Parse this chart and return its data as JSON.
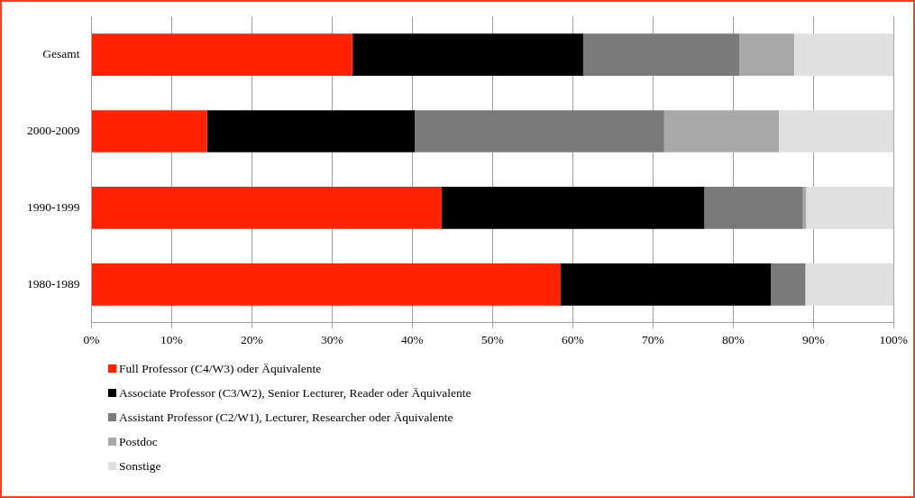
{
  "chart_data": {
    "type": "bar",
    "orientation": "horizontal",
    "stacked": true,
    "categories": [
      "Gesamt",
      "2000-2009",
      "1990-1999",
      "1980-1989"
    ],
    "series": [
      {
        "name": "Full Professor (C4/W3) oder Äquivalente",
        "color": "#ff2200",
        "values": [
          32.5,
          14.4,
          43.6,
          58.5
        ]
      },
      {
        "name": "Associate Professor (C3/W2), Senior Lecturer, Reader oder Äquivalente",
        "color": "#000000",
        "values": [
          28.8,
          25.9,
          32.8,
          26.2
        ]
      },
      {
        "name": "Assistant Professor (C2/W1), Lecturer, Researcher oder Äquivalente",
        "color": "#7a7a7a",
        "values": [
          19.5,
          31.1,
          12.3,
          4.3
        ]
      },
      {
        "name": "Postdoc",
        "color": "#a8a8a8",
        "values": [
          6.8,
          14.3,
          0.4,
          0
        ]
      },
      {
        "name": "Sonstige",
        "color": "#e0e0e0",
        "values": [
          12.4,
          14.3,
          10.9,
          11.0
        ]
      }
    ],
    "xlim": [
      0,
      100
    ],
    "xticks": [
      {
        "value": 0,
        "label": "0%"
      },
      {
        "value": 10,
        "label": "10%"
      },
      {
        "value": 20,
        "label": "20%"
      },
      {
        "value": 30,
        "label": "30%"
      },
      {
        "value": 40,
        "label": "40%"
      },
      {
        "value": 50,
        "label": "50%"
      },
      {
        "value": 60,
        "label": "60%"
      },
      {
        "value": 70,
        "label": "70%"
      },
      {
        "value": 80,
        "label": "80%"
      },
      {
        "value": 90,
        "label": "90%"
      },
      {
        "value": 100,
        "label": "100%"
      }
    ],
    "grid": "x",
    "legend": "bottom"
  }
}
